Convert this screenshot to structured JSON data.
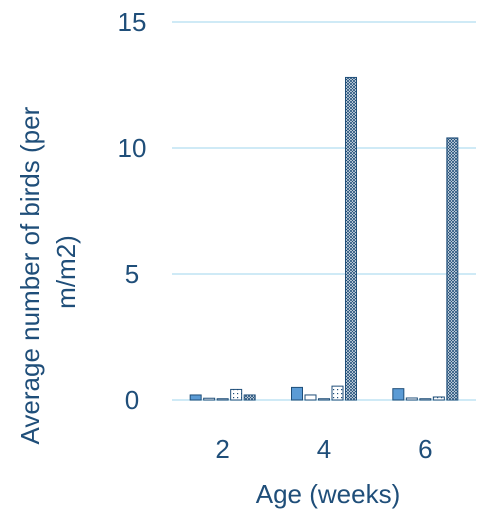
{
  "chart_data": {
    "type": "bar",
    "title": "",
    "xlabel": "Age (weeks)",
    "ylabel_lines": [
      "Average number of birds (per",
      "m/m2)"
    ],
    "ylim": [
      0,
      15
    ],
    "yticks": [
      0,
      5,
      10,
      15
    ],
    "grid": true,
    "legend": "none",
    "categories": [
      "2",
      "4",
      "6"
    ],
    "series": [
      {
        "values": [
          0.2,
          0.5,
          0.45
        ],
        "color": "#5b9bd5",
        "fill": "solid"
      },
      {
        "values": [
          0.07,
          0.2,
          0.08
        ],
        "color": "#ffffff",
        "fill": "hollow"
      },
      {
        "values": [
          0.05,
          0.05,
          0.05
        ],
        "color": "#ffffff",
        "fill": "hollow"
      },
      {
        "values": [
          0.42,
          0.55,
          0.12
        ],
        "color": "#ffffff",
        "fill": "dotted"
      },
      {
        "values": [
          0.2,
          12.8,
          10.4
        ],
        "color": "#ffffff",
        "fill": "crosshatch"
      }
    ],
    "colors": {
      "axis_text": "#1f4e79",
      "grid": "#bfe3f3",
      "bar_stroke": "#1f4e79"
    }
  }
}
